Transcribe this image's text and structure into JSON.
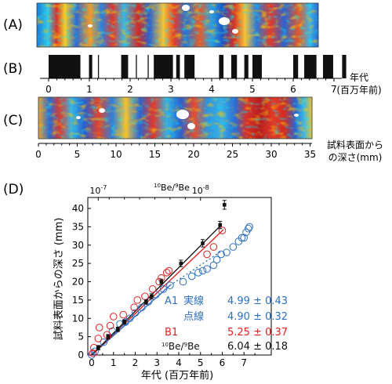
{
  "panels": {
    "a": {
      "label": "(A)"
    },
    "b": {
      "label": "(B)",
      "axis_title_1": "年代",
      "axis_title_2": "(百万年前)",
      "ticks": [
        "0",
        "1",
        "2",
        "3",
        "4",
        "5",
        "6",
        "7"
      ],
      "normal_polarity_intervals": [
        [
          0.0,
          0.78
        ],
        [
          0.99,
          1.07
        ],
        [
          1.78,
          1.95
        ],
        [
          2.58,
          3.05
        ],
        [
          3.13,
          3.22
        ],
        [
          3.33,
          3.58
        ],
        [
          4.18,
          4.29
        ],
        [
          4.48,
          4.62
        ],
        [
          4.8,
          4.9
        ],
        [
          5.0,
          5.23
        ],
        [
          6.0,
          6.12
        ],
        [
          6.27,
          6.57
        ],
        [
          6.73,
          6.98
        ],
        [
          7.2,
          7.3
        ]
      ],
      "reversed_thin_lines": [
        1.21,
        2.14,
        2.43
      ]
    },
    "c": {
      "label": "(C)",
      "axis_title_1": "試料表面から",
      "axis_title_2": "の深さ(mm)",
      "ticks": [
        "0",
        "5",
        "10",
        "15",
        "20",
        "25",
        "30",
        "35"
      ]
    },
    "d": {
      "label": "(D)"
    }
  },
  "chart_data": {
    "type": "scatter",
    "xlabel": "年代 (百万年前)",
    "ylabel": "試料表面からの深さ (mm)",
    "top_axis_label": "10Be/9Be",
    "top_axis_label_parts": [
      "10",
      "Be/",
      "9",
      "Be"
    ],
    "top_ticks": [
      {
        "base": "10",
        "exp": "-7",
        "x": 0.3
      },
      {
        "base": "10",
        "exp": "-8",
        "x": 5.0
      }
    ],
    "xlim": [
      0,
      8
    ],
    "ylim": [
      0,
      43
    ],
    "x_ticks": [
      "0",
      "1",
      "2",
      "3",
      "4",
      "5",
      "6",
      "7"
    ],
    "y_ticks": [
      "0",
      "5",
      "10",
      "15",
      "20",
      "25",
      "30",
      "35",
      "40"
    ],
    "colors": {
      "a1": "#2f6fc0",
      "b1": "#e02020",
      "be": "#111111"
    },
    "series": [
      {
        "name": "A1",
        "marker": "open-circle",
        "color": "#2f6fc0",
        "points": [
          [
            0.0,
            0.0
          ],
          [
            0.15,
            1.0
          ],
          [
            0.55,
            3.5
          ],
          [
            0.95,
            6.5
          ],
          [
            1.3,
            8.5
          ],
          [
            1.55,
            9.0
          ],
          [
            1.75,
            10.0
          ],
          [
            2.0,
            11.5
          ],
          [
            2.3,
            13.0
          ],
          [
            2.6,
            14.5
          ],
          [
            2.95,
            16.5
          ],
          [
            3.3,
            18.0
          ],
          [
            3.6,
            19.0
          ],
          [
            4.2,
            20.0
          ],
          [
            4.6,
            21.5
          ],
          [
            4.9,
            22.5
          ],
          [
            5.1,
            23.0
          ],
          [
            5.3,
            23.5
          ],
          [
            5.6,
            24.5
          ],
          [
            5.75,
            26.0
          ],
          [
            5.95,
            27.5
          ],
          [
            6.2,
            28.0
          ],
          [
            6.5,
            29.5
          ],
          [
            6.75,
            31.0
          ],
          [
            6.9,
            32.0
          ],
          [
            7.0,
            32.0
          ],
          [
            7.1,
            33.5
          ],
          [
            7.2,
            34.5
          ],
          [
            7.25,
            35.0
          ]
        ]
      },
      {
        "name": "B1",
        "marker": "open-circle",
        "color": "#e02020",
        "points": [
          [
            0.05,
            0.5
          ],
          [
            0.1,
            2.0
          ],
          [
            0.3,
            4.5
          ],
          [
            0.35,
            7.5
          ],
          [
            0.7,
            5.5
          ],
          [
            0.85,
            8.0
          ],
          [
            1.0,
            10.5
          ],
          [
            1.45,
            11.0
          ],
          [
            1.95,
            13.0
          ],
          [
            2.1,
            15.0
          ],
          [
            2.45,
            16.0
          ],
          [
            2.8,
            18.0
          ],
          [
            3.1,
            20.0
          ],
          [
            3.2,
            21.0
          ],
          [
            3.45,
            22.5
          ],
          [
            3.55,
            23.0
          ],
          [
            5.3,
            27.5
          ],
          [
            5.6,
            29.5
          ],
          [
            6.0,
            34.0
          ]
        ]
      },
      {
        "name": "10Be/9Be",
        "marker": "filled-square",
        "color": "#111111",
        "points": [
          [
            0.3,
            2.0
          ],
          [
            0.75,
            5.0
          ],
          [
            1.2,
            7.0
          ],
          [
            1.5,
            9.0
          ],
          [
            2.5,
            14.5
          ],
          [
            2.75,
            16.0
          ],
          [
            3.2,
            20.0
          ],
          [
            4.1,
            25.0
          ],
          [
            5.1,
            30.5
          ],
          [
            5.9,
            35.5
          ],
          [
            6.1,
            41.0
          ]
        ],
        "errors": [
          0.6,
          0.6,
          0.6,
          0.6,
          0.6,
          0.7,
          0.7,
          0.9,
          1.0,
          1.0,
          1.2
        ]
      }
    ],
    "fits": [
      {
        "series": "A1",
        "style": "solid",
        "color": "#2f6fc0",
        "from": [
          0,
          0
        ],
        "to": [
          3.6,
          19.0
        ]
      },
      {
        "series": "A1",
        "style": "dotted",
        "color": "#2f6fc0",
        "from": [
          3.6,
          19.0
        ],
        "to": [
          6.0,
          28.5
        ]
      },
      {
        "series": "B1",
        "style": "solid",
        "color": "#e02020",
        "from": [
          0,
          0
        ],
        "to": [
          6.05,
          34.2
        ]
      },
      {
        "series": "10Be/9Be",
        "style": "solid",
        "color": "#111111",
        "from": [
          0,
          0
        ],
        "to": [
          5.95,
          35.5
        ]
      }
    ],
    "annotations": [
      {
        "label": "A1",
        "method": "実線",
        "value": "4.99 ± 0.43",
        "color": "#2f6fc0"
      },
      {
        "label": "",
        "method": "点線",
        "value": "4.90 ± 0.32",
        "color": "#2f6fc0"
      },
      {
        "label": "B1",
        "method": "",
        "value": "5.25 ± 0.37",
        "color": "#e02020"
      },
      {
        "label": "10Be/9Be",
        "method": "",
        "value": "6.04 ± 0.18",
        "color": "#111111"
      }
    ]
  }
}
